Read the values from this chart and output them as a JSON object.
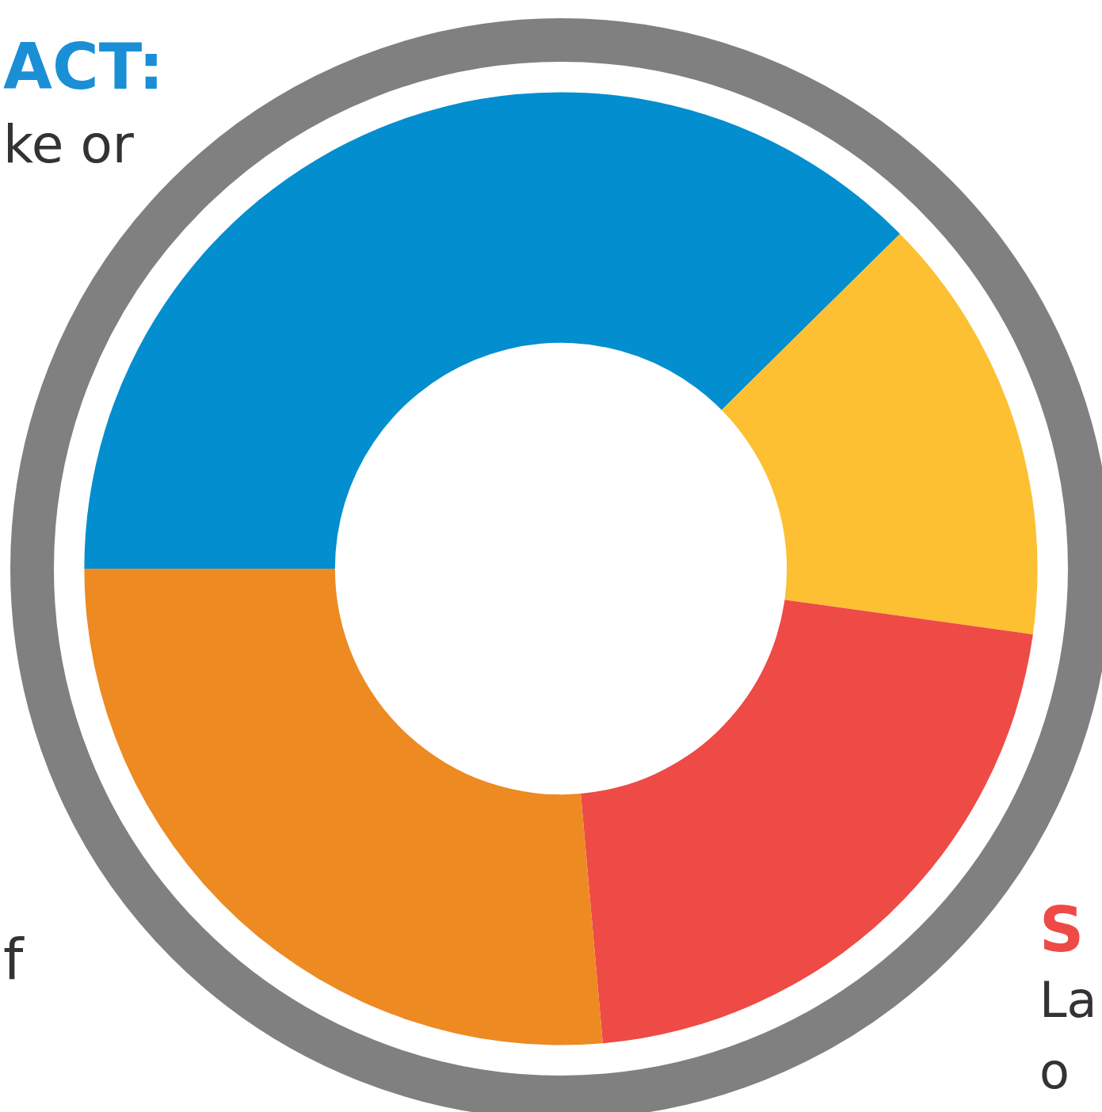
{
  "chart_data": {
    "type": "donut",
    "categories": [
      null,
      null,
      null,
      null
    ],
    "values": [
      37.6,
      14.6,
      21.4,
      26.4
    ],
    "colors": [
      "#028ecf",
      "#fdc033",
      "#ee4a46",
      "#ed8a22"
    ],
    "annotations": [
      "ACT:",
      "ke or",
      "f",
      "S",
      "La",
      "o"
    ]
  }
}
